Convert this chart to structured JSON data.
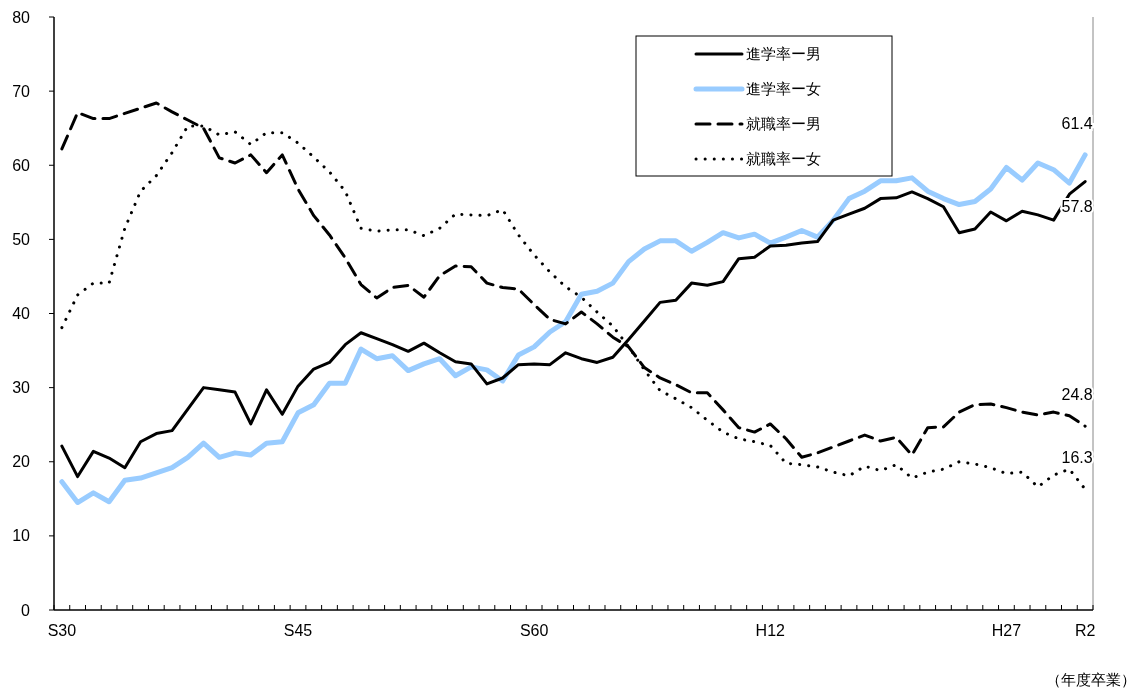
{
  "chart_data": {
    "type": "line",
    "categories": [
      "S30",
      null,
      null,
      null,
      null,
      null,
      null,
      null,
      null,
      null,
      null,
      null,
      null,
      null,
      null,
      "S45",
      null,
      null,
      null,
      null,
      null,
      null,
      null,
      null,
      null,
      null,
      null,
      null,
      null,
      null,
      "S60",
      null,
      null,
      null,
      null,
      null,
      null,
      null,
      null,
      null,
      null,
      null,
      null,
      null,
      null,
      "H12",
      null,
      null,
      null,
      null,
      null,
      null,
      null,
      null,
      null,
      null,
      null,
      null,
      null,
      null,
      "H27",
      null,
      null,
      null,
      null,
      "R2"
    ],
    "ylim": [
      0,
      80
    ],
    "yticks": [
      0,
      10,
      20,
      30,
      40,
      50,
      60,
      70,
      80
    ],
    "grid": false,
    "legend": "top right",
    "marker": "none",
    "annotations": [
      "（年度卒業）"
    ],
    "series": [
      {
        "name": "進学率ー男",
        "color": "#000000",
        "line_style": "solid",
        "values": [
          22.1,
          18.0,
          21.4,
          20.5,
          19.2,
          22.7,
          23.8,
          24.2,
          27.1,
          30.0,
          29.7,
          29.4,
          25.1,
          29.7,
          26.4,
          30.2,
          32.5,
          33.4,
          35.8,
          37.4,
          36.6,
          35.8,
          34.9,
          36.0,
          34.7,
          33.5,
          33.2,
          30.5,
          31.3,
          33.1,
          33.2,
          33.1,
          34.7,
          33.9,
          33.4,
          34.1,
          36.5,
          39.0,
          41.5,
          41.8,
          44.1,
          43.8,
          44.3,
          47.4,
          47.6,
          49.1,
          49.2,
          49.5,
          49.7,
          52.6,
          53.4,
          54.2,
          55.5,
          55.6,
          56.4,
          55.5,
          54.4,
          50.9,
          51.4,
          53.7,
          52.5,
          53.8,
          53.3,
          52.6,
          56.1,
          57.8
        ],
        "value_labels": [
          null,
          null,
          null,
          null,
          null,
          null,
          null,
          null,
          null,
          null,
          null,
          null,
          null,
          null,
          null,
          null,
          null,
          null,
          null,
          null,
          null,
          null,
          null,
          null,
          null,
          null,
          null,
          null,
          null,
          null,
          null,
          null,
          null,
          null,
          null,
          null,
          null,
          null,
          null,
          null,
          null,
          null,
          null,
          null,
          null,
          null,
          null,
          null,
          null,
          null,
          null,
          null,
          null,
          null,
          null,
          null,
          null,
          null,
          null,
          null,
          null,
          null,
          null,
          null,
          null,
          "57.8"
        ]
      },
      {
        "name": "進学率ー女",
        "color": "#99ccff",
        "line_style": "solid",
        "values": [
          17.3,
          14.5,
          15.8,
          14.6,
          17.5,
          17.8,
          18.5,
          19.2,
          20.6,
          22.5,
          20.6,
          21.2,
          20.9,
          22.5,
          22.7,
          26.6,
          27.7,
          30.6,
          30.6,
          35.2,
          33.9,
          34.3,
          32.3,
          33.2,
          33.9,
          31.6,
          32.8,
          32.4,
          30.9,
          34.4,
          35.5,
          37.5,
          38.9,
          42.6,
          43.0,
          44.1,
          47.0,
          48.7,
          49.8,
          49.8,
          48.4,
          49.6,
          50.9,
          50.2,
          50.7,
          49.5,
          50.3,
          51.2,
          50.3,
          52.6,
          55.5,
          56.5,
          57.9,
          57.9,
          58.3,
          56.5,
          55.5,
          54.7,
          55.1,
          56.8,
          59.7,
          58.0,
          60.3,
          59.4,
          57.6,
          61.4
        ],
        "value_labels": [
          null,
          null,
          null,
          null,
          null,
          null,
          null,
          null,
          null,
          null,
          null,
          null,
          null,
          null,
          null,
          null,
          null,
          null,
          null,
          null,
          null,
          null,
          null,
          null,
          null,
          null,
          null,
          null,
          null,
          null,
          null,
          null,
          null,
          null,
          null,
          null,
          null,
          null,
          null,
          null,
          null,
          null,
          null,
          null,
          null,
          null,
          null,
          null,
          null,
          null,
          null,
          null,
          null,
          null,
          null,
          null,
          null,
          null,
          null,
          null,
          null,
          null,
          null,
          null,
          null,
          "61.4"
        ]
      },
      {
        "name": "就職率ー男",
        "color": "#000000",
        "line_style": "dashed",
        "values": [
          62.2,
          67.1,
          66.3,
          66.3,
          67.0,
          67.7,
          68.4,
          67.2,
          66.1,
          65.0,
          61.0,
          60.3,
          61.4,
          59.0,
          61.4,
          56.8,
          53.2,
          50.6,
          47.5,
          43.9,
          42.1,
          43.5,
          43.8,
          42.2,
          45.1,
          46.4,
          46.3,
          44.1,
          43.5,
          43.3,
          41.2,
          39.2,
          38.6,
          40.2,
          38.6,
          36.8,
          35.5,
          32.7,
          31.3,
          30.4,
          29.3,
          29.3,
          27.0,
          24.6,
          24.0,
          25.1,
          23.1,
          20.6,
          21.2,
          22.0,
          22.8,
          23.6,
          22.8,
          23.3,
          20.9,
          24.6,
          24.7,
          26.7,
          27.7,
          27.8,
          27.3,
          26.7,
          26.3,
          26.7,
          26.2,
          24.8
        ],
        "value_labels": [
          null,
          null,
          null,
          null,
          null,
          null,
          null,
          null,
          null,
          null,
          null,
          null,
          null,
          null,
          null,
          null,
          null,
          null,
          null,
          null,
          null,
          null,
          null,
          null,
          null,
          null,
          null,
          null,
          null,
          null,
          null,
          null,
          null,
          null,
          null,
          null,
          null,
          null,
          null,
          null,
          null,
          null,
          null,
          null,
          null,
          null,
          null,
          null,
          null,
          null,
          null,
          null,
          null,
          null,
          null,
          null,
          null,
          null,
          null,
          null,
          null,
          null,
          null,
          null,
          null,
          "24.8"
        ]
      },
      {
        "name": "就職率ー女",
        "color": "#000000",
        "line_style": "dotted",
        "values": [
          38.1,
          42.5,
          44.1,
          44.1,
          51.5,
          56.5,
          58.6,
          61.7,
          65.3,
          65.3,
          64.1,
          64.5,
          62.8,
          64.4,
          64.4,
          63.0,
          61.1,
          59.1,
          56.5,
          51.5,
          51.1,
          51.3,
          51.3,
          50.5,
          51.5,
          53.4,
          53.3,
          53.2,
          54.0,
          50.6,
          47.9,
          45.6,
          43.6,
          42.2,
          40.2,
          38.3,
          35.5,
          32.4,
          29.6,
          28.5,
          27.3,
          25.6,
          24.0,
          23.1,
          22.7,
          22.2,
          19.8,
          19.6,
          19.3,
          18.6,
          18.1,
          19.4,
          18.8,
          19.6,
          17.8,
          18.6,
          19.0,
          20.0,
          19.7,
          19.2,
          18.4,
          18.6,
          16.6,
          18.2,
          19.0,
          16.3
        ],
        "value_labels": [
          null,
          null,
          null,
          null,
          null,
          null,
          null,
          null,
          null,
          null,
          null,
          null,
          null,
          null,
          null,
          null,
          null,
          null,
          null,
          null,
          null,
          null,
          null,
          null,
          null,
          null,
          null,
          null,
          null,
          null,
          null,
          null,
          null,
          null,
          null,
          null,
          null,
          null,
          null,
          null,
          null,
          null,
          null,
          null,
          null,
          null,
          null,
          null,
          null,
          null,
          null,
          null,
          null,
          null,
          null,
          null,
          null,
          null,
          null,
          null,
          null,
          null,
          null,
          null,
          null,
          "16.3"
        ]
      }
    ]
  }
}
